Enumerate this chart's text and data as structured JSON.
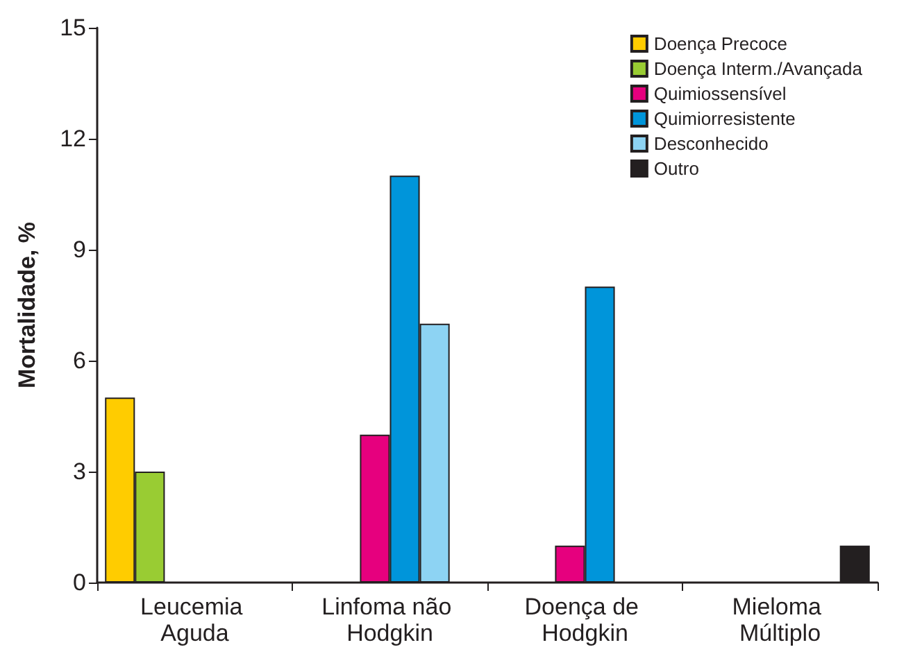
{
  "chart_data": {
    "type": "bar",
    "ylabel": "Mortalidade, %",
    "categories": [
      "Leucemia Aguda",
      "Linfoma não Hodgkin",
      "Doença de Hodgkin",
      "Mieloma Múltiplo"
    ],
    "series": [
      {
        "name": "Doença Precoce",
        "color": "#ffcc00",
        "values": [
          5,
          null,
          null,
          null
        ]
      },
      {
        "name": "Doença Interm./Avançada",
        "color": "#99cc33",
        "values": [
          3,
          null,
          null,
          null
        ]
      },
      {
        "name": "Quimiossensível",
        "color": "#e6007e",
        "values": [
          null,
          4,
          1,
          null
        ]
      },
      {
        "name": "Quimiorresistente",
        "color": "#0095da",
        "values": [
          null,
          11,
          8,
          null
        ]
      },
      {
        "name": "Desconhecido",
        "color": "#8dd3f3",
        "values": [
          null,
          7,
          null,
          null
        ]
      },
      {
        "name": "Outro",
        "color": "#231f20",
        "values": [
          null,
          null,
          null,
          1
        ]
      }
    ],
    "ylim": [
      0,
      15
    ],
    "yticks": [
      0,
      3,
      6,
      9,
      12,
      15
    ],
    "grid": false,
    "legend": "top right"
  }
}
